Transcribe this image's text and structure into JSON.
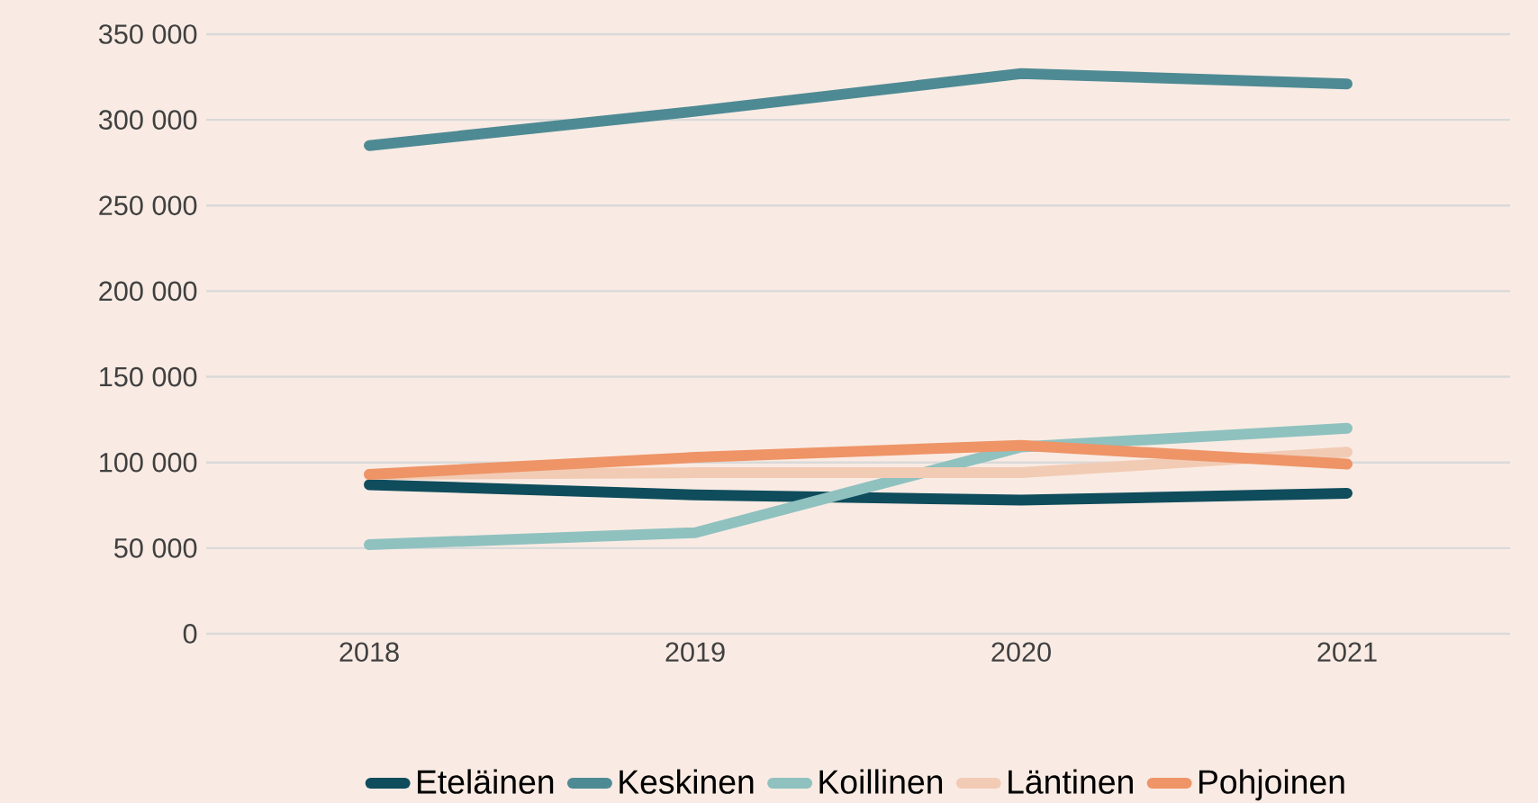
{
  "chart_data": {
    "type": "line",
    "categories": [
      "2018",
      "2019",
      "2020",
      "2021"
    ],
    "series": [
      {
        "name": "Eteläinen",
        "color": "#0f4c5c",
        "values": [
          87000,
          81000,
          78000,
          82000
        ]
      },
      {
        "name": "Keskinen",
        "color": "#4e8a94",
        "values": [
          285000,
          305000,
          327000,
          321000
        ]
      },
      {
        "name": "Koillinen",
        "color": "#8fc1bf",
        "values": [
          52000,
          59000,
          109000,
          120000
        ]
      },
      {
        "name": "Läntinen",
        "color": "#f2cbb5",
        "values": [
          93000,
          94000,
          94000,
          106000
        ]
      },
      {
        "name": "Pohjoinen",
        "color": "#ee9467",
        "values": [
          93000,
          103000,
          110000,
          99000
        ]
      }
    ],
    "ylim": [
      0,
      350000
    ],
    "yticks": [
      0,
      {
        "value": 50000,
        "label": "50 000"
      },
      {
        "value": 100000,
        "label": "100 000"
      },
      {
        "value": 150000,
        "label": "150 000"
      },
      {
        "value": 200000,
        "label": "200 000"
      },
      {
        "value": 250000,
        "label": "250 000"
      },
      {
        "value": 300000,
        "label": "300 000"
      },
      {
        "value": 350000,
        "label": "350 000"
      }
    ],
    "grid": "y",
    "legend": "bottom",
    "marker": "none",
    "line_style": "solid"
  }
}
